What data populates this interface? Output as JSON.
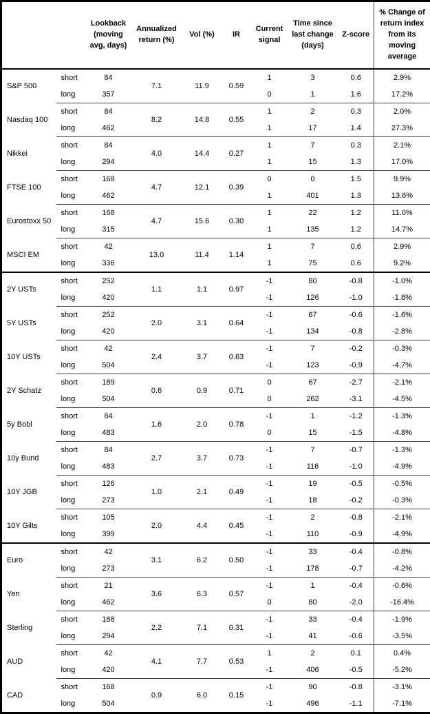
{
  "table": {
    "headers": [
      "Lookback (moving avg, days)",
      "Annualized return (%)",
      "Vol (%)",
      "IR",
      "Current signal",
      "Time since last change (days)",
      "Z-score",
      "% Change of return index from its moving average"
    ],
    "horizon_labels": [
      "short",
      "long"
    ],
    "section_breaks": [
      6,
      14
    ],
    "groups": [
      {
        "name": "S&P 500",
        "annualized": "7.1",
        "vol": "11.9",
        "ir": "0.59",
        "rows": [
          {
            "horizon": "short",
            "lookback": "84",
            "signal": "1",
            "days": "3",
            "zscore": "0.6",
            "pct_change": "2.9%"
          },
          {
            "horizon": "long",
            "lookback": "357",
            "signal": "0",
            "days": "1",
            "zscore": "1.6",
            "pct_change": "17.2%"
          }
        ]
      },
      {
        "name": "Nasdaq 100",
        "annualized": "8.2",
        "vol": "14.8",
        "ir": "0.55",
        "rows": [
          {
            "horizon": "short",
            "lookback": "84",
            "signal": "1",
            "days": "2",
            "zscore": "0.3",
            "pct_change": "2.0%"
          },
          {
            "horizon": "long",
            "lookback": "462",
            "signal": "1",
            "days": "17",
            "zscore": "1.4",
            "pct_change": "27.3%"
          }
        ]
      },
      {
        "name": "Nikkei",
        "annualized": "4.0",
        "vol": "14.4",
        "ir": "0.27",
        "rows": [
          {
            "horizon": "short",
            "lookback": "84",
            "signal": "1",
            "days": "7",
            "zscore": "0.3",
            "pct_change": "2.1%"
          },
          {
            "horizon": "long",
            "lookback": "294",
            "signal": "1",
            "days": "15",
            "zscore": "1.3",
            "pct_change": "17.0%"
          }
        ]
      },
      {
        "name": "FTSE 100",
        "annualized": "4.7",
        "vol": "12.1",
        "ir": "0.39",
        "rows": [
          {
            "horizon": "short",
            "lookback": "168",
            "signal": "0",
            "days": "0",
            "zscore": "1.5",
            "pct_change": "9.9%"
          },
          {
            "horizon": "long",
            "lookback": "462",
            "signal": "1",
            "days": "401",
            "zscore": "1.3",
            "pct_change": "13.6%"
          }
        ]
      },
      {
        "name": "Eurostoxx 50",
        "annualized": "4.7",
        "vol": "15.6",
        "ir": "0.30",
        "rows": [
          {
            "horizon": "short",
            "lookback": "168",
            "signal": "1",
            "days": "22",
            "zscore": "1.2",
            "pct_change": "11.0%"
          },
          {
            "horizon": "long",
            "lookback": "315",
            "signal": "1",
            "days": "135",
            "zscore": "1.2",
            "pct_change": "14.7%"
          }
        ]
      },
      {
        "name": "MSCI EM",
        "annualized": "13.0",
        "vol": "11.4",
        "ir": "1.14",
        "rows": [
          {
            "horizon": "short",
            "lookback": "42",
            "signal": "1",
            "days": "7",
            "zscore": "0.6",
            "pct_change": "2.9%"
          },
          {
            "horizon": "long",
            "lookback": "336",
            "signal": "1",
            "days": "75",
            "zscore": "0.6",
            "pct_change": "9.2%"
          }
        ]
      },
      {
        "name": "2Y USTs",
        "annualized": "1.1",
        "vol": "1.1",
        "ir": "0.97",
        "rows": [
          {
            "horizon": "short",
            "lookback": "252",
            "signal": "-1",
            "days": "80",
            "zscore": "-0.8",
            "pct_change": "-1.0%"
          },
          {
            "horizon": "long",
            "lookback": "420",
            "signal": "-1",
            "days": "126",
            "zscore": "-1.0",
            "pct_change": "-1.8%"
          }
        ]
      },
      {
        "name": "5Y USTs",
        "annualized": "2.0",
        "vol": "3.1",
        "ir": "0.64",
        "rows": [
          {
            "horizon": "short",
            "lookback": "252",
            "signal": "-1",
            "days": "67",
            "zscore": "-0.6",
            "pct_change": "-1.6%"
          },
          {
            "horizon": "long",
            "lookback": "420",
            "signal": "-1",
            "days": "134",
            "zscore": "-0.8",
            "pct_change": "-2.8%"
          }
        ]
      },
      {
        "name": "10Y USTs",
        "annualized": "2.4",
        "vol": "3.7",
        "ir": "0.63",
        "rows": [
          {
            "horizon": "short",
            "lookback": "42",
            "signal": "-1",
            "days": "7",
            "zscore": "-0.2",
            "pct_change": "-0.3%"
          },
          {
            "horizon": "long",
            "lookback": "504",
            "signal": "-1",
            "days": "123",
            "zscore": "-0.9",
            "pct_change": "-4.7%"
          }
        ]
      },
      {
        "name": "2Y Schatz",
        "annualized": "0.6",
        "vol": "0.9",
        "ir": "0.71",
        "rows": [
          {
            "horizon": "short",
            "lookback": "189",
            "signal": "0",
            "days": "67",
            "zscore": "-2.7",
            "pct_change": "-2.1%"
          },
          {
            "horizon": "long",
            "lookback": "504",
            "signal": "0",
            "days": "262",
            "zscore": "-3.1",
            "pct_change": "-4.5%"
          }
        ]
      },
      {
        "name": "5y Bobl",
        "annualized": "1.6",
        "vol": "2.0",
        "ir": "0.78",
        "rows": [
          {
            "horizon": "short",
            "lookback": "84",
            "signal": "-1",
            "days": "1",
            "zscore": "-1.2",
            "pct_change": "-1.3%"
          },
          {
            "horizon": "long",
            "lookback": "483",
            "signal": "0",
            "days": "15",
            "zscore": "-1.5",
            "pct_change": "-4.8%"
          }
        ]
      },
      {
        "name": "10y Bund",
        "annualized": "2.7",
        "vol": "3.7",
        "ir": "0.73",
        "rows": [
          {
            "horizon": "short",
            "lookback": "84",
            "signal": "-1",
            "days": "7",
            "zscore": "-0.7",
            "pct_change": "-1.3%"
          },
          {
            "horizon": "long",
            "lookback": "483",
            "signal": "-1",
            "days": "116",
            "zscore": "-1.0",
            "pct_change": "-4.9%"
          }
        ]
      },
      {
        "name": "10Y JGB",
        "annualized": "1.0",
        "vol": "2.1",
        "ir": "0.49",
        "rows": [
          {
            "horizon": "short",
            "lookback": "126",
            "signal": "-1",
            "days": "19",
            "zscore": "-0.5",
            "pct_change": "-0.5%"
          },
          {
            "horizon": "long",
            "lookback": "273",
            "signal": "-1",
            "days": "18",
            "zscore": "-0.2",
            "pct_change": "-0.3%"
          }
        ]
      },
      {
        "name": "10Y Gilts",
        "annualized": "2.0",
        "vol": "4.4",
        "ir": "0.45",
        "rows": [
          {
            "horizon": "short",
            "lookback": "105",
            "signal": "-1",
            "days": "2",
            "zscore": "-0.8",
            "pct_change": "-2.1%"
          },
          {
            "horizon": "long",
            "lookback": "399",
            "signal": "-1",
            "days": "110",
            "zscore": "-0.9",
            "pct_change": "-4.9%"
          }
        ]
      },
      {
        "name": "Euro",
        "annualized": "3.1",
        "vol": "6.2",
        "ir": "0.50",
        "rows": [
          {
            "horizon": "short",
            "lookback": "42",
            "signal": "-1",
            "days": "33",
            "zscore": "-0.4",
            "pct_change": "-0.8%"
          },
          {
            "horizon": "long",
            "lookback": "273",
            "signal": "-1",
            "days": "178",
            "zscore": "-0.7",
            "pct_change": "-4.2%"
          }
        ]
      },
      {
        "name": "Yen",
        "annualized": "3.6",
        "vol": "6.3",
        "ir": "0.57",
        "rows": [
          {
            "horizon": "short",
            "lookback": "21",
            "signal": "-1",
            "days": "1",
            "zscore": "-0.4",
            "pct_change": "-0.6%"
          },
          {
            "horizon": "long",
            "lookback": "462",
            "signal": "0",
            "days": "80",
            "zscore": "-2.0",
            "pct_change": "-16.4%"
          }
        ]
      },
      {
        "name": "Sterling",
        "annualized": "2.2",
        "vol": "7.1",
        "ir": "0.31",
        "rows": [
          {
            "horizon": "short",
            "lookback": "168",
            "signal": "-1",
            "days": "33",
            "zscore": "-0.4",
            "pct_change": "-1.9%"
          },
          {
            "horizon": "long",
            "lookback": "294",
            "signal": "-1",
            "days": "41",
            "zscore": "-0.6",
            "pct_change": "-3.5%"
          }
        ]
      },
      {
        "name": "AUD",
        "annualized": "4.1",
        "vol": "7.7",
        "ir": "0.53",
        "rows": [
          {
            "horizon": "short",
            "lookback": "42",
            "signal": "1",
            "days": "2",
            "zscore": "0.1",
            "pct_change": "0.4%"
          },
          {
            "horizon": "long",
            "lookback": "420",
            "signal": "-1",
            "days": "406",
            "zscore": "-0.5",
            "pct_change": "-5.2%"
          }
        ]
      },
      {
        "name": "CAD",
        "annualized": "0.9",
        "vol": "6.0",
        "ir": "0.15",
        "rows": [
          {
            "horizon": "short",
            "lookback": "168",
            "signal": "-1",
            "days": "90",
            "zscore": "-0.8",
            "pct_change": "-3.1%"
          },
          {
            "horizon": "long",
            "lookback": "504",
            "signal": "-1",
            "days": "496",
            "zscore": "-1.1",
            "pct_change": "-7.1%"
          }
        ]
      }
    ]
  }
}
